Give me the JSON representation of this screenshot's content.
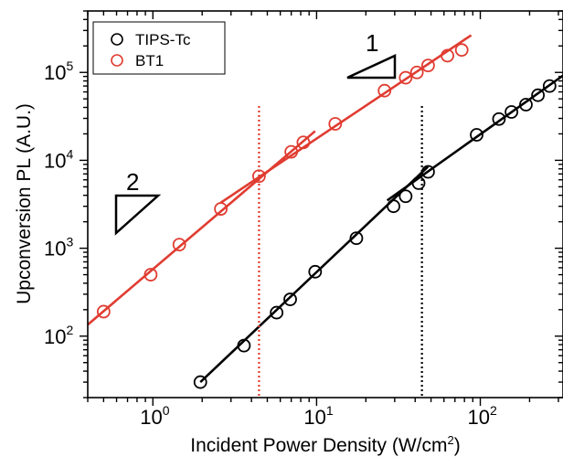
{
  "chart_data": {
    "type": "scatter",
    "xlabel": "Incident Power Density (W/cm",
    "xlabel_sup": "2",
    "xlabel_end": ")",
    "ylabel": "Upconversion PL (A.U.)",
    "x_scale": "log",
    "y_scale": "log",
    "xlim": [
      0.4,
      320
    ],
    "ylim": [
      20,
      500000
    ],
    "grid": false,
    "legend_position": "top-left",
    "x_ticks": [
      {
        "value": 1,
        "base": "10",
        "exp": "0"
      },
      {
        "value": 10,
        "base": "10",
        "exp": "1"
      },
      {
        "value": 100,
        "base": "10",
        "exp": "2"
      }
    ],
    "y_ticks": [
      {
        "value": 100,
        "base": "10",
        "exp": "2"
      },
      {
        "value": 1000,
        "base": "10",
        "exp": "3"
      },
      {
        "value": 10000,
        "base": "10",
        "exp": "4"
      },
      {
        "value": 100000,
        "base": "10",
        "exp": "5"
      }
    ],
    "series": [
      {
        "name": "TIPS-Tc",
        "color": "#000000",
        "marker": "open-circle",
        "points": [
          [
            1.95,
            30
          ],
          [
            3.6,
            78
          ],
          [
            5.7,
            185
          ],
          [
            6.9,
            262
          ],
          [
            9.8,
            540
          ],
          [
            17.5,
            1300
          ],
          [
            29.5,
            3000
          ],
          [
            35,
            3900
          ],
          [
            42,
            5500
          ],
          [
            48,
            7400
          ],
          [
            95,
            19500
          ],
          [
            130,
            29500
          ],
          [
            155,
            35500
          ],
          [
            190,
            43000
          ],
          [
            225,
            55000
          ],
          [
            265,
            70000
          ]
        ],
        "fits": [
          {
            "x": [
              1.95,
              48
            ],
            "y": [
              30,
              8500
            ]
          },
          {
            "x": [
              27,
              320
            ],
            "y": [
              3500,
              92000
            ]
          }
        ],
        "threshold_x": 44
      },
      {
        "name": "BT1",
        "color": "#e03c31",
        "marker": "open-circle",
        "points": [
          [
            0.5,
            190
          ],
          [
            0.97,
            500
          ],
          [
            1.45,
            1100
          ],
          [
            2.6,
            2800
          ],
          [
            4.45,
            6600
          ],
          [
            7,
            12500
          ],
          [
            8.3,
            16000
          ],
          [
            13,
            26000
          ],
          [
            26,
            62000
          ],
          [
            35,
            87000
          ],
          [
            41,
            100000
          ],
          [
            48,
            120000
          ],
          [
            63,
            155000
          ],
          [
            77,
            180000
          ]
        ],
        "fits": [
          {
            "x": [
              0.4,
              9.8
            ],
            "y": [
              135,
              21500
            ]
          },
          {
            "x": [
              2.6,
              88
            ],
            "y": [
              3300,
              265000
            ]
          }
        ],
        "threshold_x": 4.45
      }
    ],
    "annotations": [
      {
        "text": "1",
        "slope": 1
      },
      {
        "text": "2",
        "slope": 2
      }
    ]
  }
}
